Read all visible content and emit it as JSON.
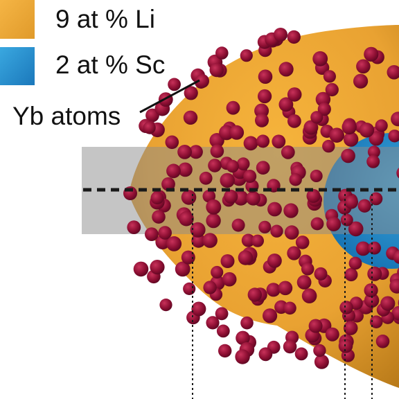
{
  "legend": {
    "items": [
      {
        "label": "9 at % Li"
      },
      {
        "label": "2 at % Sc"
      }
    ]
  },
  "annotation": "Yb atoms"
}
